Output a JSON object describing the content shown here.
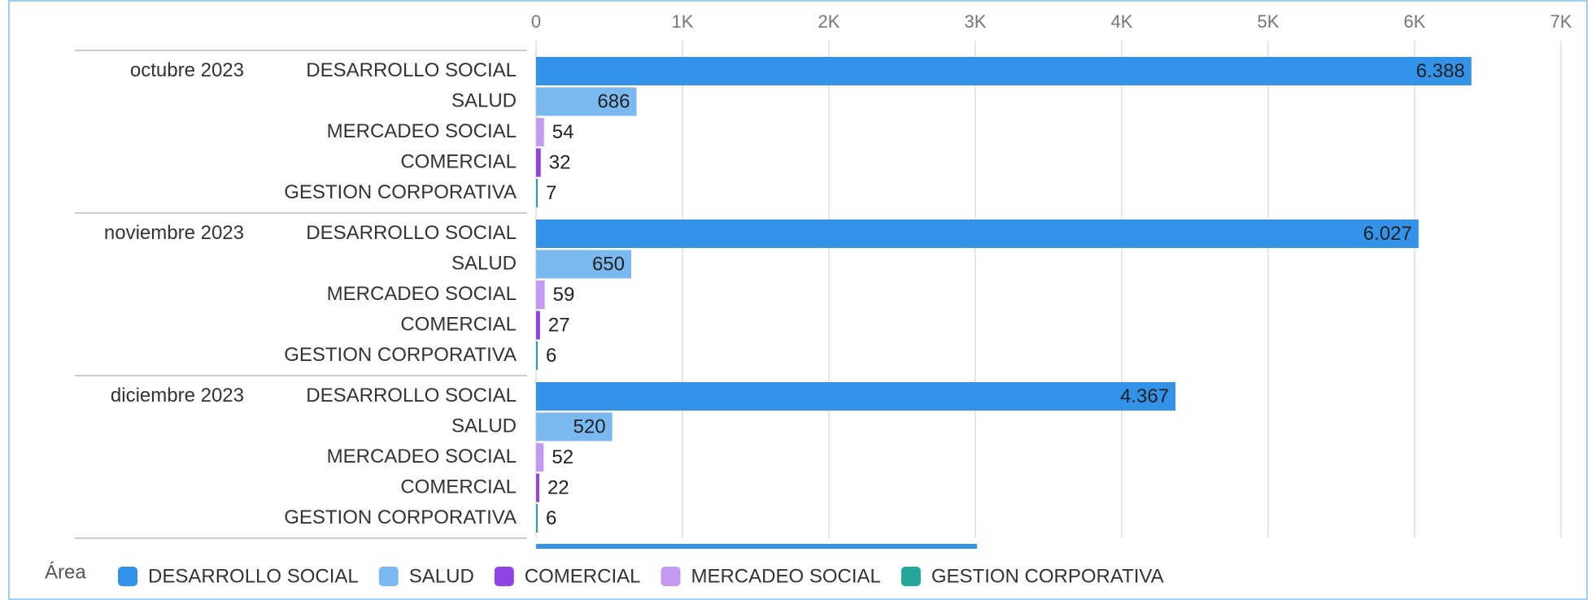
{
  "chart_data": {
    "type": "bar",
    "orientation": "horizontal",
    "groups": [
      "octubre 2023",
      "noviembre 2023",
      "diciembre 2023"
    ],
    "rows": [
      "DESARROLLO SOCIAL",
      "SALUD",
      "MERCADEO SOCIAL",
      "COMERCIAL",
      "GESTION CORPORATIVA"
    ],
    "legend_title": "Área",
    "series": [
      {
        "name": "DESARROLLO SOCIAL",
        "color": "#3393e8",
        "values": [
          6388,
          6027,
          4367
        ],
        "value_labels": [
          "6.388",
          "6.027",
          "4.367"
        ]
      },
      {
        "name": "SALUD",
        "color": "#7ab8f0",
        "values": [
          686,
          650,
          520
        ]
      },
      {
        "name": "COMERCIAL",
        "color": "#9243e6",
        "values": [
          32,
          27,
          22
        ]
      },
      {
        "name": "MERCADEO SOCIAL",
        "color": "#c49af0",
        "values": [
          54,
          59,
          52
        ]
      },
      {
        "name": "GESTION CORPORATIVA",
        "color": "#26a69a",
        "values": [
          7,
          6,
          6
        ]
      }
    ],
    "xlim": [
      0,
      7000
    ],
    "xticks": [
      0,
      {
        "value": 1000,
        "label": "1K"
      },
      {
        "value": 2000,
        "label": "2K"
      },
      {
        "value": 3000,
        "label": "3K"
      },
      {
        "value": 4000,
        "label": "4K"
      },
      {
        "value": 5000,
        "label": "5K"
      },
      {
        "value": 6000,
        "label": "6K"
      },
      {
        "value": 7000,
        "label": "7K"
      }
    ],
    "grid": true
  }
}
